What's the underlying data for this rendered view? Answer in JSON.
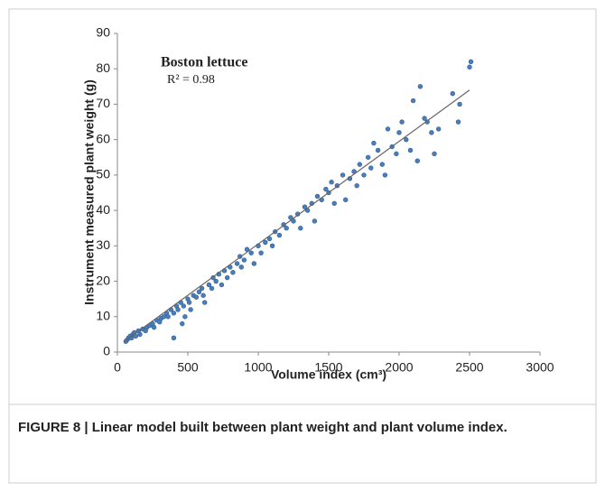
{
  "chart_data": {
    "type": "scatter",
    "title": "Boston lettuce",
    "annotation": "R² = 0.98",
    "x_label": "Volume index (cm³)",
    "y_label": "Instrument measured plant weight (g)",
    "color": "#4a7ebb",
    "x": [
      60,
      70,
      80,
      90,
      100,
      110,
      120,
      130,
      150,
      160,
      180,
      200,
      210,
      230,
      250,
      260,
      280,
      300,
      310,
      330,
      350,
      360,
      380,
      400,
      400,
      420,
      430,
      450,
      460,
      470,
      480,
      500,
      510,
      520,
      540,
      560,
      580,
      600,
      610,
      620,
      650,
      670,
      680,
      700,
      720,
      740,
      760,
      780,
      800,
      820,
      850,
      870,
      880,
      900,
      920,
      950,
      970,
      1000,
      1020,
      1050,
      1080,
      1100,
      1120,
      1150,
      1180,
      1200,
      1230,
      1250,
      1280,
      1300,
      1330,
      1350,
      1380,
      1400,
      1420,
      1450,
      1480,
      1500,
      1520,
      1540,
      1560,
      1600,
      1620,
      1650,
      1680,
      1700,
      1720,
      1750,
      1780,
      1800,
      1820,
      1850,
      1880,
      1900,
      1920,
      1950,
      1980,
      2000,
      2020,
      2050,
      2080,
      2100,
      2130,
      2150,
      2180,
      2200,
      2230,
      2250,
      2280,
      2380,
      2420,
      2430,
      2500,
      2510
    ],
    "values": [
      3,
      3.5,
      4,
      4.5,
      4,
      5,
      5.5,
      4.5,
      6,
      5,
      6.5,
      6,
      7,
      7.5,
      8,
      7,
      9,
      8.5,
      9.5,
      10,
      11,
      10,
      12,
      11,
      4,
      13,
      12,
      14,
      8,
      13,
      10,
      15,
      14,
      12,
      16,
      15.5,
      17,
      18,
      16,
      14,
      19,
      18,
      21,
      20,
      22,
      19,
      23,
      21,
      24,
      22.5,
      25,
      27,
      24,
      26,
      29,
      28,
      25,
      30,
      28,
      31,
      32,
      30,
      34,
      33,
      36,
      35,
      38,
      37,
      39,
      35,
      41,
      40,
      42,
      37,
      44,
      43,
      46,
      45,
      48,
      42,
      47,
      50,
      43,
      49,
      51,
      47,
      53,
      50,
      55,
      52,
      59,
      57,
      53,
      50,
      63,
      58,
      56,
      62,
      65,
      60,
      57,
      71,
      54,
      75,
      66,
      65,
      62,
      56,
      63,
      73,
      65,
      70,
      80.5,
      82
    ],
    "fit_line": {
      "x": [
        50,
        2500
      ],
      "y": [
        3,
        74
      ]
    },
    "xlim": [
      0,
      3000
    ],
    "xticks": [
      0,
      500,
      1000,
      1500,
      2000,
      2500,
      3000
    ],
    "ylim": [
      0,
      90
    ],
    "yticks": [
      0,
      10,
      20,
      30,
      40,
      50,
      60,
      70,
      80,
      90
    ]
  },
  "caption": "FIGURE 8 | Linear model built between plant weight and plant volume index."
}
